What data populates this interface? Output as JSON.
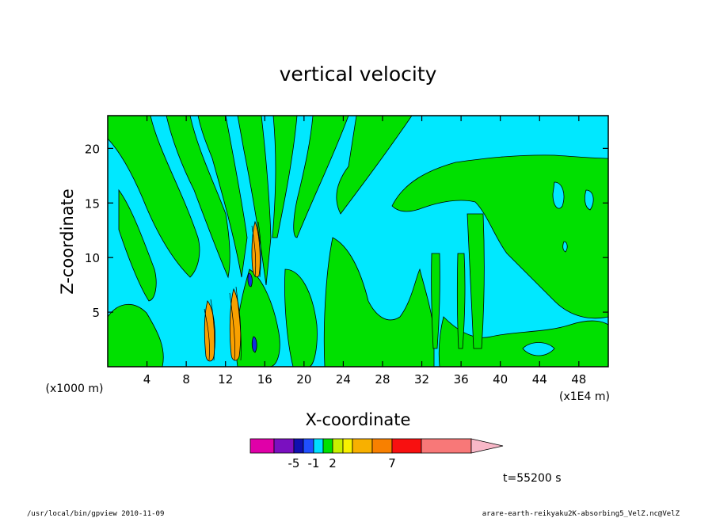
{
  "chart_data": {
    "type": "heatmap",
    "title": "vertical velocity",
    "xlabel": "X-coordinate",
    "ylabel": "Z-coordinate",
    "x_units": "(x1E4 m)",
    "y_units": "(x1000 m)",
    "xlim": [
      0,
      51
    ],
    "ylim": [
      0,
      23
    ],
    "x_ticks": [
      "4",
      "8",
      "12",
      "16",
      "20",
      "24",
      "28",
      "32",
      "36",
      "40",
      "44",
      "48"
    ],
    "y_ticks": [
      "5",
      "10",
      "15",
      "20"
    ],
    "colorbar": {
      "colors": [
        "#e000a8",
        "#7a10c0",
        "#1010b0",
        "#2050ff",
        "#00e0ff",
        "#00e000",
        "#c8f000",
        "#f8f000",
        "#f8b000",
        "#f88000",
        "#f81010",
        "#f87878",
        "#f8b8c8"
      ],
      "tick_labels": [
        "-5",
        "-1",
        "2",
        "7"
      ]
    },
    "field_colors": {
      "background": "#00e8ff",
      "green": "#00e000",
      "positive_core": "#f8a000",
      "negative_core": "#1030e0",
      "contour_line": "#000000"
    }
  },
  "annotations": {
    "time": "t=55200 s"
  },
  "footer": {
    "left": "/usr/local/bin/gpview  2010-11-09",
    "right": "arare-earth-reikyaku2K-absorbing5_VelZ.nc@VelZ"
  }
}
